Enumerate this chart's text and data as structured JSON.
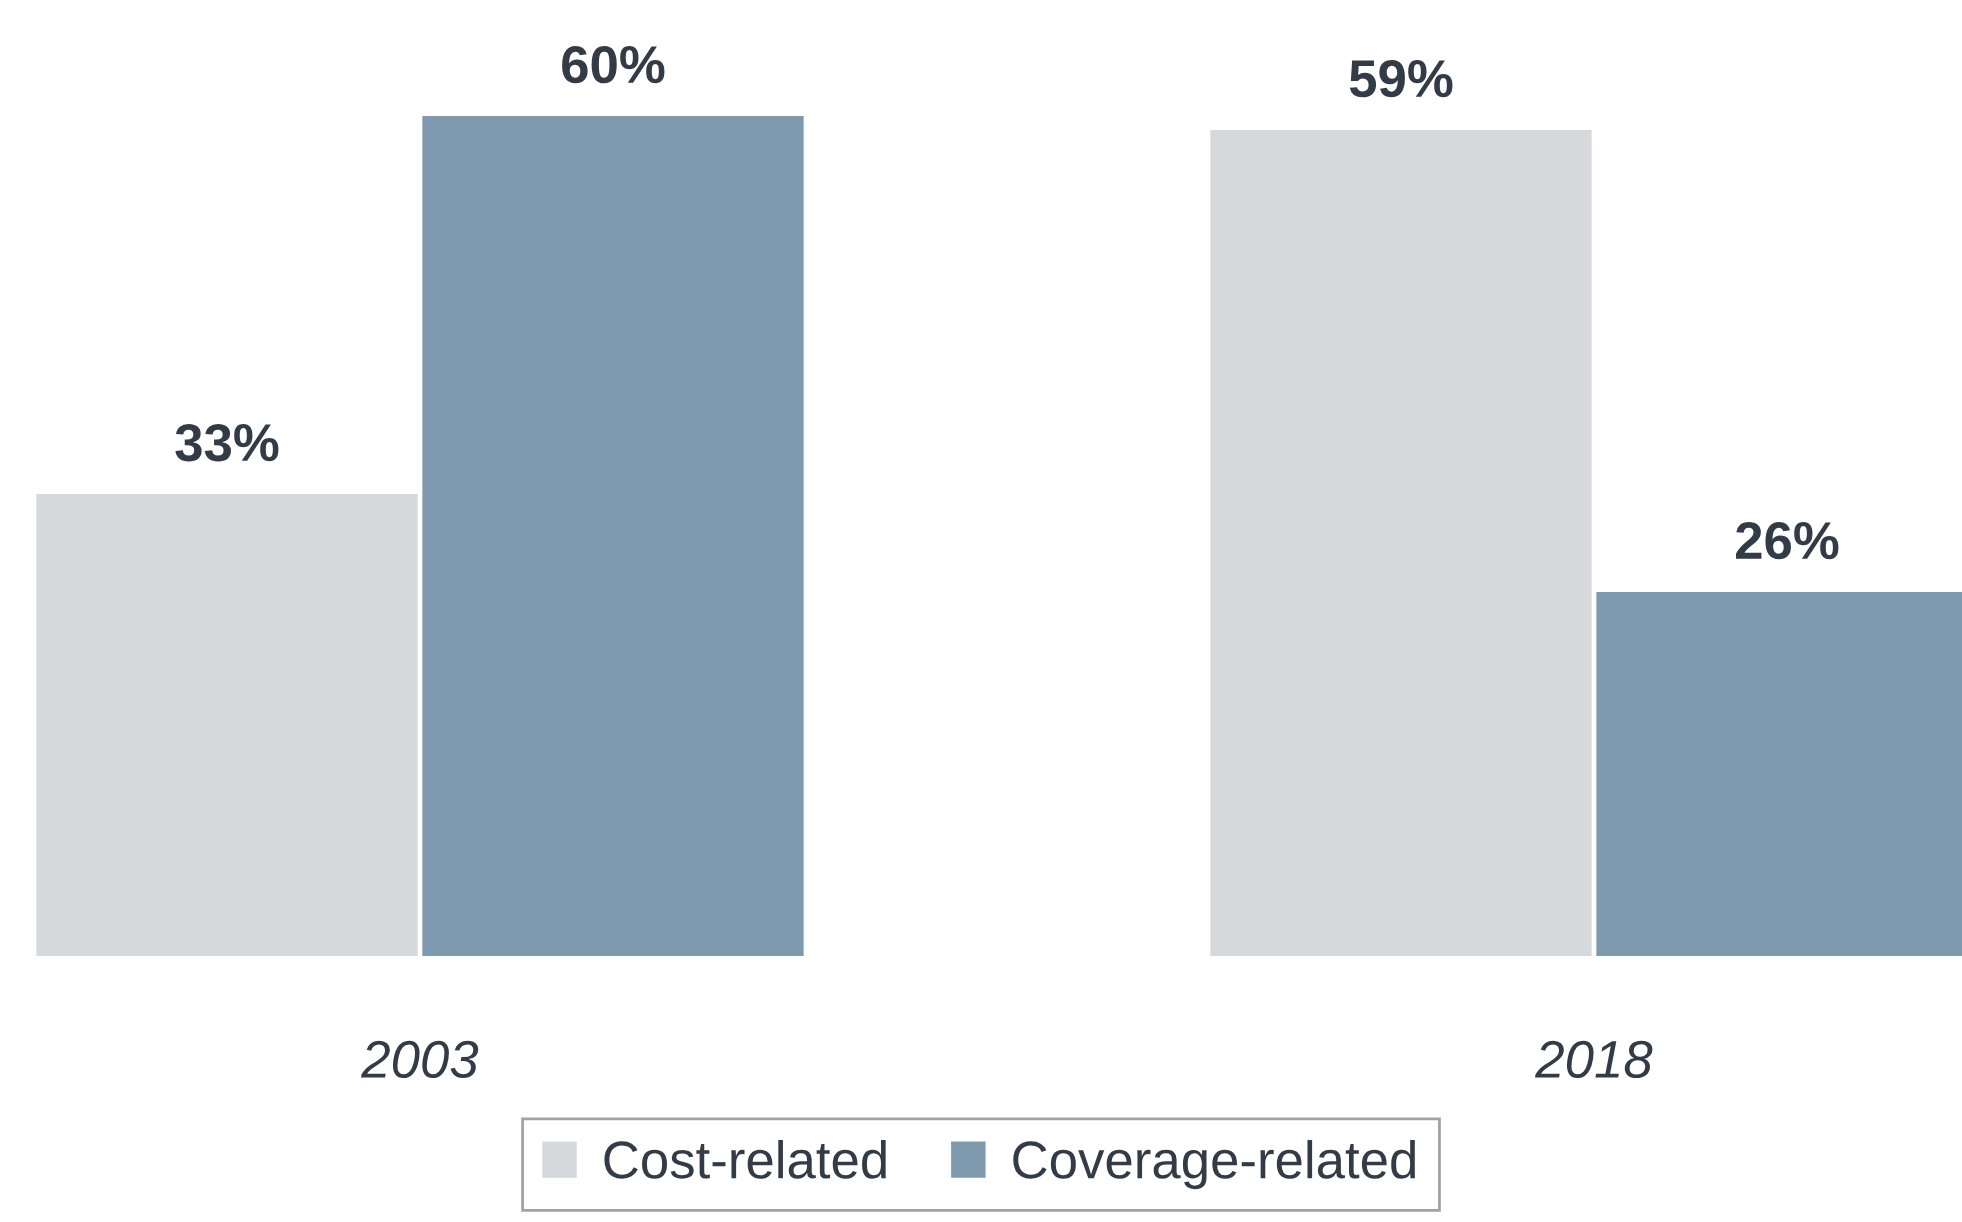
{
  "chart_data": {
    "type": "bar",
    "categories": [
      "2003",
      "2018"
    ],
    "series": [
      {
        "name": "Cost-related",
        "color": "#d5d9db",
        "values": [
          33,
          59
        ],
        "value_labels": [
          "33%",
          "59%"
        ]
      },
      {
        "name": "Coverage-related",
        "color": "#7f9aae",
        "values": [
          60,
          26
        ],
        "value_labels": [
          "60%",
          "26%"
        ]
      }
    ],
    "legend": "bottom",
    "grid": false
  }
}
